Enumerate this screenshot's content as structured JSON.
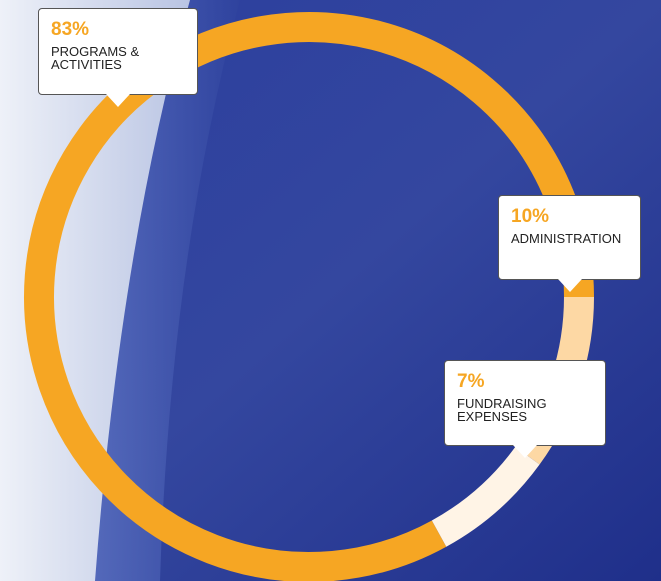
{
  "chart_data": {
    "type": "pie",
    "donut": true,
    "categories": [
      "PROGRAMS & ACTIVITIES",
      "ADMINISTRATION",
      "FUNDRAISING EXPENSES"
    ],
    "values": [
      83,
      10,
      7
    ],
    "value_labels": [
      "83%",
      "10%",
      "7%"
    ],
    "colors": [
      "#f6a623",
      "#fdd8a4",
      "#fff4e6"
    ]
  }
}
